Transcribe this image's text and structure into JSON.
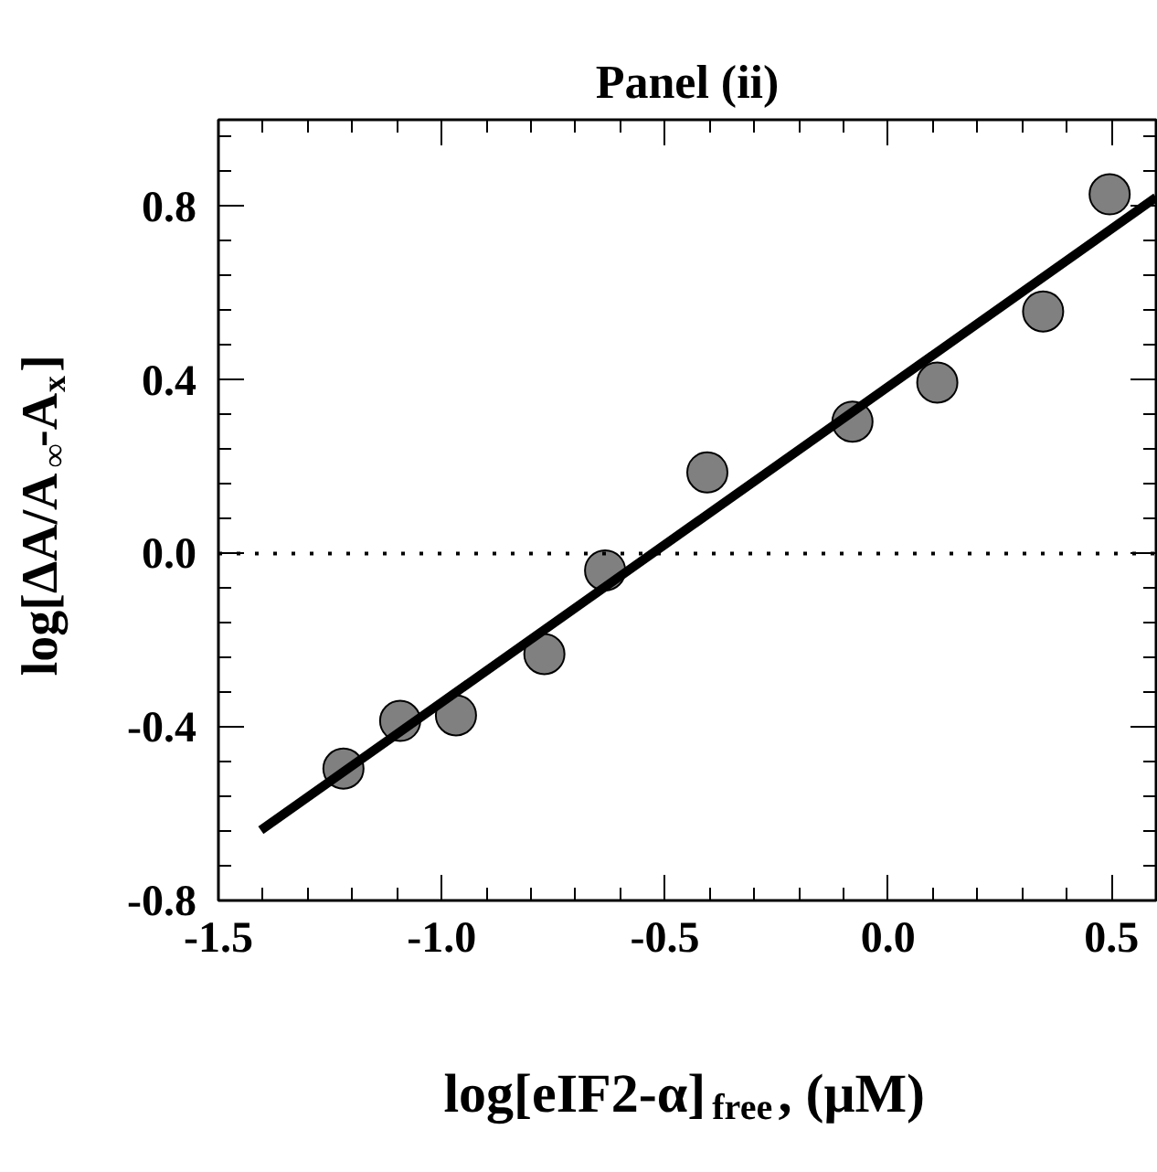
{
  "chart_data": {
    "type": "scatter",
    "title": "Panel (ii)",
    "xlabel": "log[eIF2-α]$_{free}$, (μM)",
    "ylabel": "log[ΔA/A$_{∞}$-A$_{x}$]",
    "xlim": [
      -1.5,
      0.6
    ],
    "ylim": [
      -0.8,
      1.0
    ],
    "xticks": [
      -1.5,
      {
        "value": -1.0,
        "label": "-1.0"
      },
      -0.5,
      {
        "value": 0,
        "label": "0.0"
      },
      0.5
    ],
    "yticks": [
      -0.8,
      -0.4,
      {
        "value": 0,
        "label": "0.0"
      },
      0.4,
      0.8
    ],
    "grid": false,
    "ref_lines": [
      {
        "axis": "y",
        "value": 0,
        "color": "#000000",
        "line_style": "dotted"
      }
    ],
    "series": [
      {
        "type": "scatter",
        "marker": "circle",
        "color": "#808080",
        "x": [
          -1.22,
          -1.093,
          -0.968,
          -0.77,
          -0.634,
          -0.405,
          -0.08,
          0.11,
          0.347,
          0.496
        ],
        "values": [
          -0.496,
          -0.386,
          -0.373,
          -0.232,
          -0.039,
          0.187,
          0.304,
          0.394,
          0.558,
          0.828
        ]
      },
      {
        "type": "line",
        "line_style": "solid",
        "color": "#000000",
        "x": [
          -1.405,
          0.6
        ],
        "values": [
          -0.638,
          0.821
        ]
      }
    ]
  }
}
